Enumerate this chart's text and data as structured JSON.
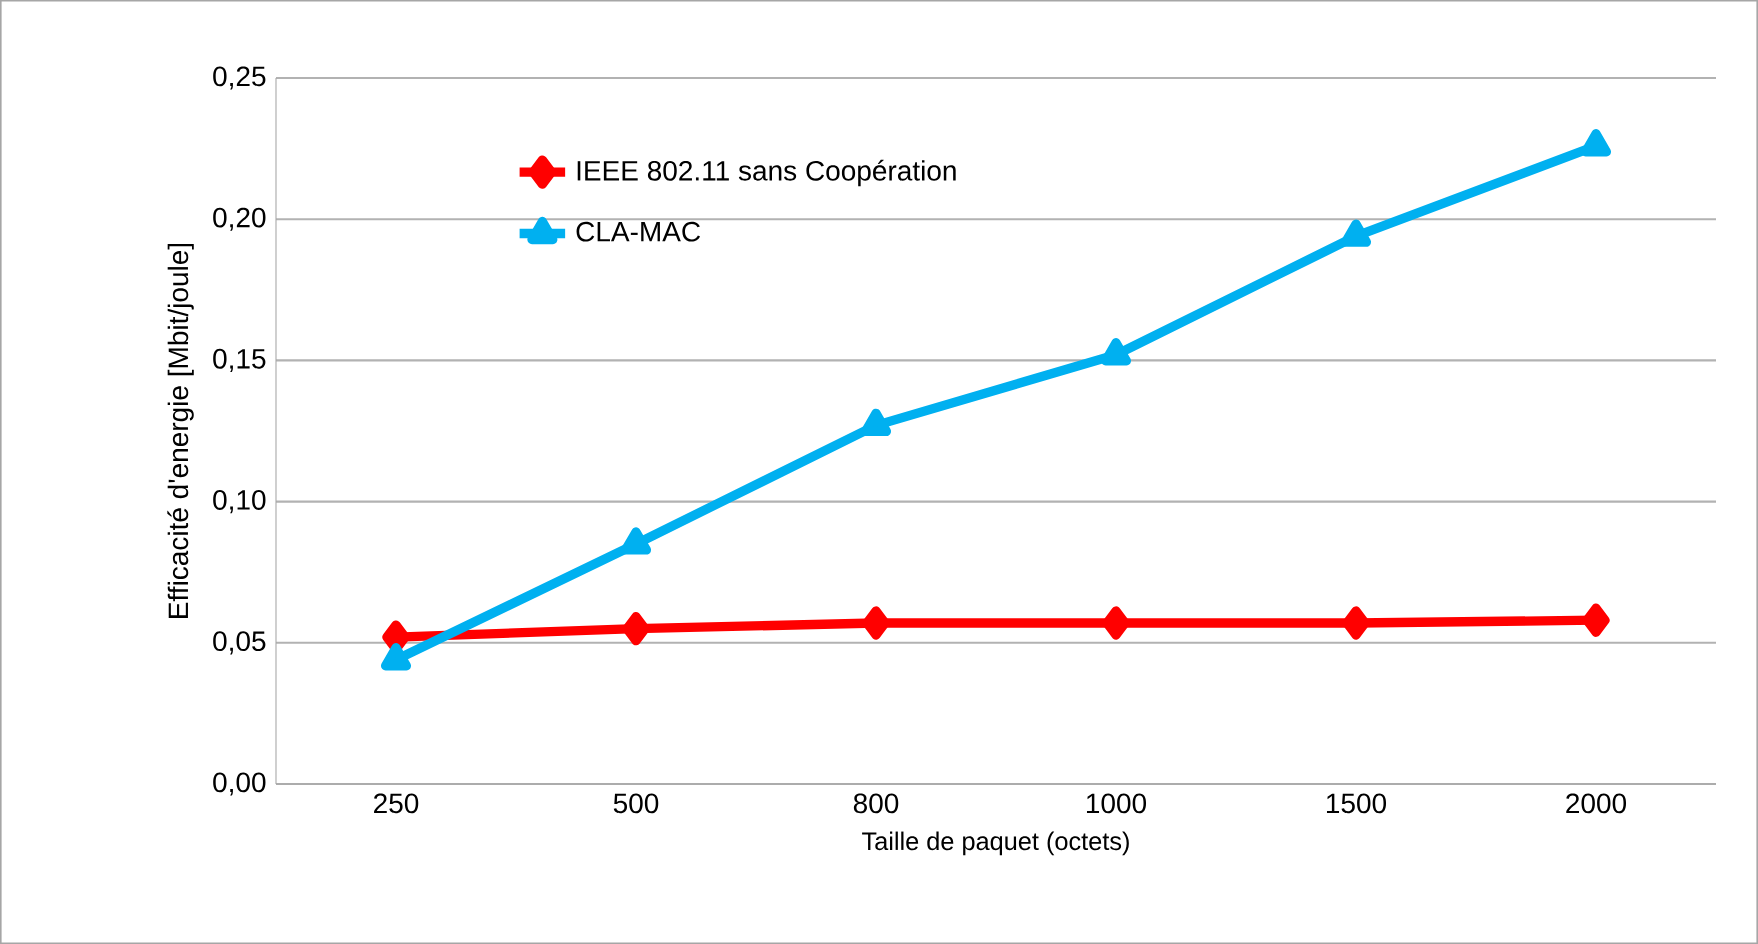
{
  "chart_data": {
    "type": "line",
    "xlabel": "Taille de paquet (octets)",
    "ylabel": "Efficacité d'energie [Mbit/joule]",
    "categories": [
      "250",
      "500",
      "800",
      "1000",
      "1500",
      "2000"
    ],
    "series": [
      {
        "name": "IEEE 802.11 sans Coopération",
        "color": "#ff0000",
        "marker": "diamond",
        "values": [
          0.052,
          0.055,
          0.057,
          0.057,
          0.057,
          0.058
        ]
      },
      {
        "name": "CLA-MAC",
        "color": "#00b0f0",
        "marker": "triangle",
        "values": [
          0.044,
          0.085,
          0.127,
          0.152,
          0.194,
          0.226
        ]
      }
    ],
    "ylim": [
      0,
      0.25
    ],
    "yticks": [
      {
        "value": 0,
        "label": "0,00"
      },
      {
        "value": 0.05,
        "label": "0,05"
      },
      {
        "value": 0.1,
        "label": "0,10"
      },
      {
        "value": 0.15,
        "label": "0,15"
      },
      {
        "value": 0.2,
        "label": "0,20"
      },
      {
        "value": 0.25,
        "label": "0,25"
      }
    ],
    "grid": "y",
    "legend": "top left",
    "line_style": "solid"
  }
}
